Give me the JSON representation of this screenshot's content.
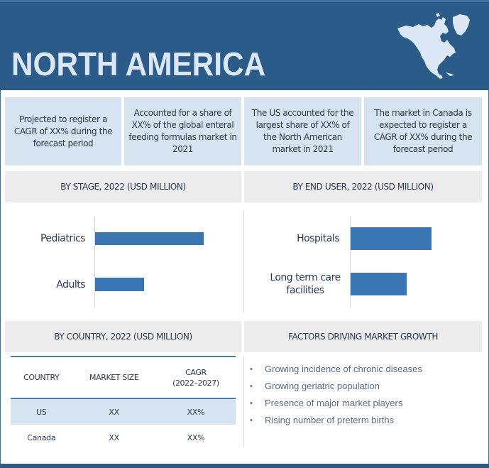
{
  "header": {
    "title": "NORTH AMERICA",
    "map_icon": "north-america-map-icon"
  },
  "stats": [
    "Projected to register a CAGR of XX% during the forecast period",
    "Accounted for a share of XX% of the global enteral feeding formulas market in 2021",
    "The US accounted for the largest share of XX% of the North American market in 2021",
    "The market in Canada is expected to register a CAGR of  XX% during the forecast period"
  ],
  "sections": {
    "stage_title": "BY STAGE, 2022 (USD MILLION)",
    "end_user_title": "BY END USER, 2022 (USD MILLION)",
    "country_title": "BY COUNTRY, 2022 (USD MILLION)",
    "factors_title": "FACTORS DRIVING MARKET GROWTH"
  },
  "chart_data": [
    {
      "type": "bar",
      "orientation": "horizontal",
      "title": "BY STAGE, 2022 (USD MILLION)",
      "categories": [
        "Pediatrics",
        "Adults"
      ],
      "values": [
        100,
        45
      ],
      "units": "relative (no axis values shown)"
    },
    {
      "type": "bar",
      "orientation": "horizontal",
      "title": "BY END USER, 2022 (USD MILLION)",
      "categories": [
        "Hospitals",
        "Long term care facilities"
      ],
      "values": [
        100,
        69
      ],
      "units": "relative (no axis values shown)"
    }
  ],
  "bar_labels": {
    "stage": [
      "Pediatrics",
      "Adults"
    ],
    "end_user": [
      "Hospitals",
      "Long term care",
      "facilities"
    ]
  },
  "country_table": {
    "headers": [
      "COUNTRY",
      "MARKET SIZE",
      "CAGR",
      "(2022–2027)"
    ],
    "rows": [
      [
        "US",
        "XX",
        "XX%"
      ],
      [
        "Canada",
        "XX",
        "XX%"
      ]
    ]
  },
  "factors": [
    "Growing incidence of chronic diseases",
    "Growing geriatric population",
    "Presence of major market players",
    "Rising number of preterm births"
  ],
  "colors": {
    "header_bg": "#2b5b88",
    "title_text": "#dbe7f4",
    "stat_bg": "#d6e3f0",
    "bar": "#3a76b4",
    "section_head_bg": "#ececec"
  }
}
